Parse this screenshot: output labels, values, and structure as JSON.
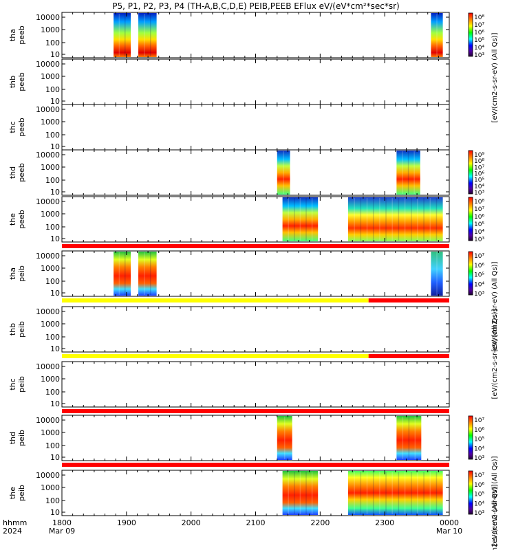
{
  "title": "P5, P1, P2, P3, P4 (TH-A,B,C,D,E) PEIB,PEEB EFlux eV/(eV*cm²*sec*sr)",
  "chart_data": {
    "type": "heatmap",
    "time_axis": {
      "label_hhmm": "hhmm",
      "label_year": "2024",
      "ticks": [
        {
          "t": 0,
          "label": "1800",
          "sub": "Mar 09"
        },
        {
          "t": 60,
          "label": "1900",
          "sub": ""
        },
        {
          "t": 120,
          "label": "2000",
          "sub": ""
        },
        {
          "t": 180,
          "label": "2100",
          "sub": ""
        },
        {
          "t": 240,
          "label": "2200",
          "sub": ""
        },
        {
          "t": 300,
          "label": "2300",
          "sub": ""
        },
        {
          "t": 360,
          "label": "0000",
          "sub": "Mar 10"
        }
      ],
      "range_minutes": [
        0,
        360
      ]
    },
    "energy_axis": {
      "scale": "log",
      "ticks": [
        "10",
        "100",
        "1000",
        "10000"
      ]
    },
    "panels": [
      {
        "probe": "tha",
        "product": "peeb",
        "top_tick": "10000",
        "colorbar": {
          "ticks": [
            "10⁸",
            "10⁷",
            "10⁶",
            "10⁵",
            "10⁴",
            "10³"
          ],
          "label": "[eV/(cm2-s-sr-eV) (All Qs)]"
        },
        "blocks": [
          [
            48,
            64,
            "lowmid"
          ],
          [
            71,
            88,
            "lowmid"
          ],
          [
            343,
            354,
            "lowmid"
          ]
        ],
        "status_bar": []
      },
      {
        "probe": "thb",
        "product": "peeb",
        "top_tick": "10000",
        "colorbar": null,
        "blocks": [],
        "status_bar": []
      },
      {
        "probe": "thc",
        "product": "peeb",
        "top_tick": "10000",
        "colorbar": null,
        "blocks": [],
        "status_bar": []
      },
      {
        "probe": "thd",
        "product": "peeb",
        "top_tick": "10000",
        "colorbar": {
          "ticks": [
            "10⁹",
            "10⁸",
            "10⁷",
            "10⁶",
            "10⁵",
            "10⁴",
            "10³"
          ],
          "label": "[eV/(cm2-s-sr-eV) (All Qs)]"
        },
        "blocks": [
          [
            200,
            212,
            "band"
          ],
          [
            311,
            333,
            "band"
          ]
        ],
        "status_bar": []
      },
      {
        "probe": "the",
        "product": "peeb",
        "top_tick": "10000",
        "colorbar": {
          "ticks": [
            "10⁸",
            "10⁷",
            "10⁶",
            "10⁵",
            "10⁴",
            "10³"
          ],
          "label": "[eV/(cm2-s-sr-eV) (All Qs)]"
        },
        "blocks": [
          [
            205,
            238,
            "band"
          ],
          [
            266,
            354,
            "mixed"
          ]
        ],
        "status_bar": [
          {
            "from": 0,
            "to": 360,
            "color": "red"
          }
        ]
      },
      {
        "probe": "tha",
        "product": "peib",
        "top_tick": "10000",
        "colorbar": {
          "ticks": [
            "10⁷",
            "10⁶",
            "10⁵",
            "10⁴",
            "10³"
          ],
          "label": "[eV/(cm2-s-sr-eV) (All Qs)]"
        },
        "blocks": [
          [
            48,
            64,
            "ion"
          ],
          [
            71,
            88,
            "ion"
          ],
          [
            343,
            354,
            "ionlow"
          ]
        ],
        "status_bar": [
          {
            "from": 0,
            "to": 285,
            "color": "yellow"
          },
          {
            "from": 285,
            "to": 360,
            "color": "red"
          }
        ]
      },
      {
        "probe": "thb",
        "product": "peib",
        "top_tick": "10000",
        "colorbar": null,
        "blocks": [],
        "status_bar": [
          {
            "from": 0,
            "to": 285,
            "color": "yellow"
          },
          {
            "from": 285,
            "to": 360,
            "color": "red"
          }
        ]
      },
      {
        "probe": "thc",
        "product": "peib",
        "top_tick": "10000",
        "colorbar": null,
        "blocks": [],
        "status_bar": [
          {
            "from": 0,
            "to": 360,
            "color": "red"
          }
        ]
      },
      {
        "probe": "thd",
        "product": "peib",
        "top_tick": "10000",
        "colorbar": {
          "ticks": [
            "10⁷",
            "10⁶",
            "10⁵",
            "10⁴",
            "10³"
          ],
          "label": "[eV/(cm2-s-sr-eV) (All Qs)]"
        },
        "blocks": [
          [
            200,
            214,
            "ion"
          ],
          [
            311,
            334,
            "ion"
          ]
        ],
        "status_bar": [
          {
            "from": 0,
            "to": 360,
            "color": "red"
          }
        ]
      },
      {
        "probe": "the",
        "product": "peib",
        "top_tick": "10000",
        "colorbar": {
          "ticks": [
            "10⁷",
            "10⁶",
            "10⁵",
            "10⁴",
            "10³"
          ],
          "label": "[eV/(cm2-s-sr-eV) (All Qs)]"
        },
        "blocks": [
          [
            205,
            238,
            "ion"
          ],
          [
            266,
            354,
            "ionmixed"
          ]
        ],
        "status_bar": []
      }
    ]
  }
}
